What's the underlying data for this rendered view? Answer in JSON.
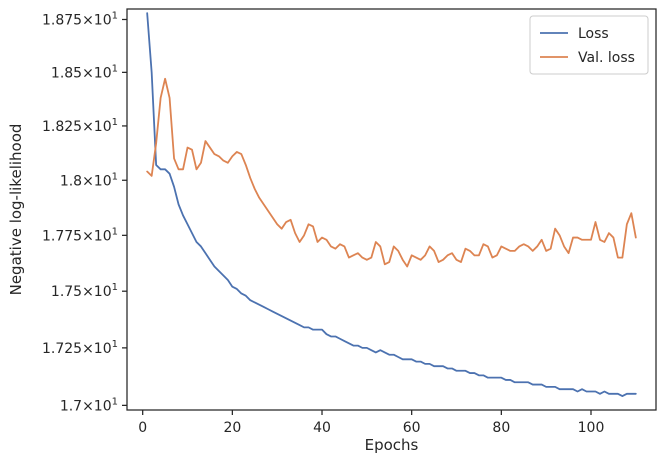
{
  "chart_data": {
    "type": "line",
    "xlabel": "Epochs",
    "ylabel": "Negative log-likelihood",
    "xlim": [
      -3.5,
      114.5
    ],
    "ylim": [
      16.98,
      18.8
    ],
    "log_y": true,
    "grid": false,
    "legend_position": "top-right",
    "x_ticks": [
      {
        "value": 0,
        "label": "0"
      },
      {
        "value": 20,
        "label": "20"
      },
      {
        "value": 40,
        "label": "40"
      },
      {
        "value": 60,
        "label": "60"
      },
      {
        "value": 80,
        "label": "80"
      },
      {
        "value": 100,
        "label": "100"
      }
    ],
    "y_ticks": [
      {
        "value": 17.0,
        "mantissa": "1.7",
        "times": "×10",
        "exp": "1"
      },
      {
        "value": 17.25,
        "mantissa": "1.725",
        "times": "×10",
        "exp": "1"
      },
      {
        "value": 17.5,
        "mantissa": "1.75",
        "times": "×10",
        "exp": "1"
      },
      {
        "value": 17.75,
        "mantissa": "1.775",
        "times": "×10",
        "exp": "1"
      },
      {
        "value": 18.0,
        "mantissa": "1.8",
        "times": "×10",
        "exp": "1"
      },
      {
        "value": 18.25,
        "mantissa": "1.825",
        "times": "×10",
        "exp": "1"
      },
      {
        "value": 18.5,
        "mantissa": "1.85",
        "times": "×10",
        "exp": "1"
      },
      {
        "value": 18.75,
        "mantissa": "1.875",
        "times": "×10",
        "exp": "1"
      }
    ],
    "series": [
      {
        "name": "Loss",
        "color": "#4c72b0",
        "x": [
          1,
          2,
          3,
          4,
          5,
          6,
          7,
          8,
          9,
          10,
          11,
          12,
          13,
          14,
          15,
          16,
          17,
          18,
          19,
          20,
          21,
          22,
          23,
          24,
          25,
          26,
          27,
          28,
          29,
          30,
          31,
          32,
          33,
          34,
          35,
          36,
          37,
          38,
          39,
          40,
          41,
          42,
          43,
          44,
          45,
          46,
          47,
          48,
          49,
          50,
          51,
          52,
          53,
          54,
          55,
          56,
          57,
          58,
          59,
          60,
          61,
          62,
          63,
          64,
          65,
          66,
          67,
          68,
          69,
          70,
          71,
          72,
          73,
          74,
          75,
          76,
          77,
          78,
          79,
          80,
          81,
          82,
          83,
          84,
          85,
          86,
          87,
          88,
          89,
          90,
          91,
          92,
          93,
          94,
          95,
          96,
          97,
          98,
          99,
          100,
          101,
          102,
          103,
          104,
          105,
          106,
          107,
          108,
          109,
          110
        ],
        "values": [
          18.78,
          18.5,
          18.07,
          18.05,
          18.05,
          18.03,
          17.97,
          17.89,
          17.84,
          17.8,
          17.76,
          17.72,
          17.7,
          17.67,
          17.64,
          17.61,
          17.59,
          17.57,
          17.55,
          17.52,
          17.51,
          17.49,
          17.48,
          17.46,
          17.45,
          17.44,
          17.43,
          17.42,
          17.41,
          17.4,
          17.39,
          17.38,
          17.37,
          17.36,
          17.35,
          17.34,
          17.34,
          17.33,
          17.33,
          17.33,
          17.31,
          17.3,
          17.3,
          17.29,
          17.28,
          17.27,
          17.26,
          17.26,
          17.25,
          17.25,
          17.24,
          17.23,
          17.24,
          17.23,
          17.22,
          17.22,
          17.21,
          17.2,
          17.2,
          17.2,
          17.19,
          17.19,
          17.18,
          17.18,
          17.17,
          17.17,
          17.17,
          17.16,
          17.16,
          17.15,
          17.15,
          17.15,
          17.14,
          17.14,
          17.13,
          17.13,
          17.12,
          17.12,
          17.12,
          17.12,
          17.11,
          17.11,
          17.1,
          17.1,
          17.1,
          17.1,
          17.09,
          17.09,
          17.09,
          17.08,
          17.08,
          17.08,
          17.07,
          17.07,
          17.07,
          17.07,
          17.06,
          17.07,
          17.06,
          17.06,
          17.06,
          17.05,
          17.06,
          17.05,
          17.05,
          17.05,
          17.04,
          17.05,
          17.05,
          17.05
        ]
      },
      {
        "name": "Val. loss",
        "color": "#dd8452",
        "x": [
          1,
          2,
          3,
          4,
          5,
          6,
          7,
          8,
          9,
          10,
          11,
          12,
          13,
          14,
          15,
          16,
          17,
          18,
          19,
          20,
          21,
          22,
          23,
          24,
          25,
          26,
          27,
          28,
          29,
          30,
          31,
          32,
          33,
          34,
          35,
          36,
          37,
          38,
          39,
          40,
          41,
          42,
          43,
          44,
          45,
          46,
          47,
          48,
          49,
          50,
          51,
          52,
          53,
          54,
          55,
          56,
          57,
          58,
          59,
          60,
          61,
          62,
          63,
          64,
          65,
          66,
          67,
          68,
          69,
          70,
          71,
          72,
          73,
          74,
          75,
          76,
          77,
          78,
          79,
          80,
          81,
          82,
          83,
          84,
          85,
          86,
          87,
          88,
          89,
          90,
          91,
          92,
          93,
          94,
          95,
          96,
          97,
          98,
          99,
          100,
          101,
          102,
          103,
          104,
          105,
          106,
          107,
          108,
          109,
          110
        ],
        "values": [
          18.04,
          18.02,
          18.17,
          18.38,
          18.47,
          18.38,
          18.1,
          18.05,
          18.05,
          18.15,
          18.14,
          18.05,
          18.08,
          18.18,
          18.15,
          18.12,
          18.11,
          18.09,
          18.08,
          18.11,
          18.13,
          18.12,
          18.07,
          18.01,
          17.96,
          17.92,
          17.89,
          17.86,
          17.83,
          17.8,
          17.78,
          17.81,
          17.82,
          17.76,
          17.72,
          17.75,
          17.8,
          17.79,
          17.72,
          17.74,
          17.73,
          17.7,
          17.69,
          17.71,
          17.7,
          17.65,
          17.66,
          17.67,
          17.65,
          17.64,
          17.65,
          17.72,
          17.7,
          17.62,
          17.63,
          17.7,
          17.68,
          17.64,
          17.61,
          17.66,
          17.65,
          17.64,
          17.66,
          17.7,
          17.68,
          17.63,
          17.64,
          17.66,
          17.67,
          17.64,
          17.63,
          17.69,
          17.68,
          17.66,
          17.66,
          17.71,
          17.7,
          17.65,
          17.66,
          17.7,
          17.69,
          17.68,
          17.68,
          17.7,
          17.71,
          17.7,
          17.68,
          17.7,
          17.73,
          17.68,
          17.69,
          17.78,
          17.75,
          17.7,
          17.67,
          17.74,
          17.74,
          17.73,
          17.73,
          17.73,
          17.81,
          17.73,
          17.72,
          17.76,
          17.74,
          17.65,
          17.65,
          17.8,
          17.85,
          17.74
        ]
      }
    ]
  }
}
